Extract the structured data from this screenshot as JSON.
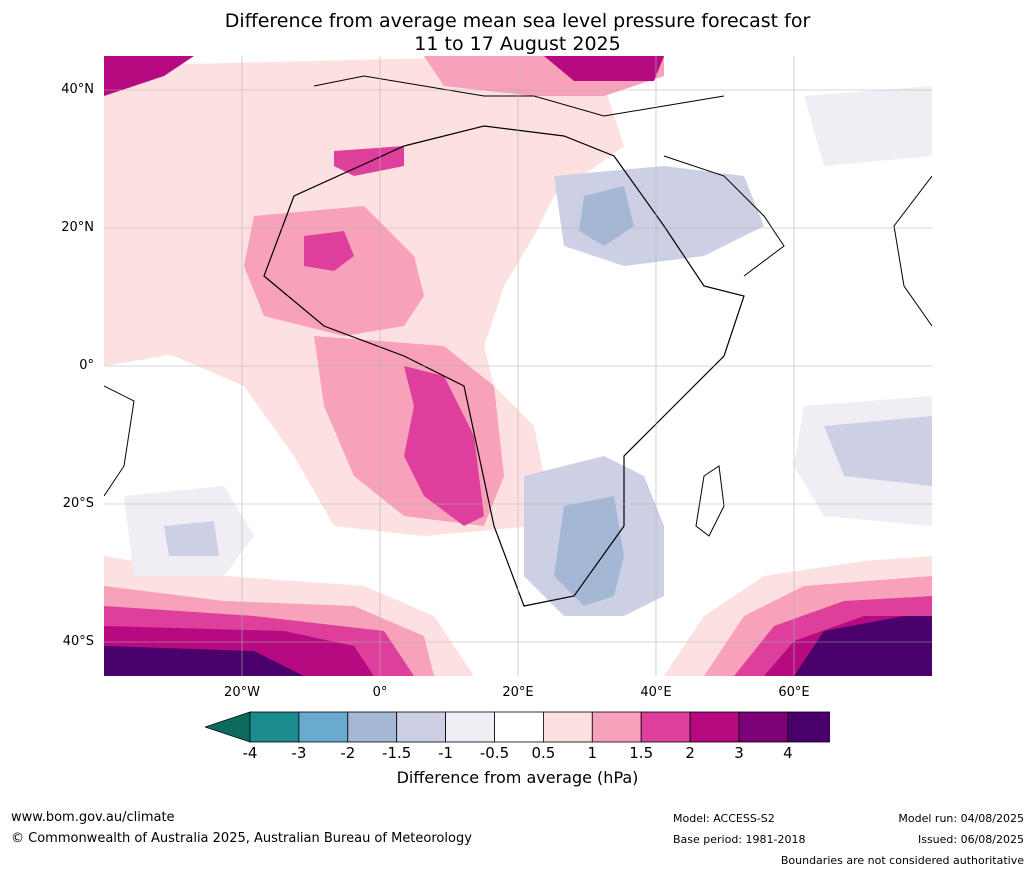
{
  "title": {
    "line1": "Difference from average mean sea level pressure forecast for",
    "line2": "11 to 17 August 2025"
  },
  "map": {
    "lat_labels": [
      "40°N",
      "20°N",
      "0°",
      "20°S",
      "40°S"
    ],
    "lon_labels": [
      "20°W",
      "0°",
      "20°E",
      "40°E",
      "60°E"
    ]
  },
  "colorbar": {
    "ticks": [
      "-4",
      "-3",
      "-2",
      "-1.5",
      "-1",
      "-0.5",
      "0.5",
      "1",
      "1.5",
      "2",
      "3",
      "4"
    ],
    "colors": [
      "#1a8c8e",
      "#6aaad0",
      "#a4b8d6",
      "#cdd0e5",
      "#f1edf4",
      "#ffffff",
      "#fde0e0",
      "#f8a1ba",
      "#df3f9c",
      "#b70a81",
      "#7a0177",
      "#49006a"
    ],
    "under_color": "#0d6b5e",
    "over_color": "#49006a",
    "label": "Difference from average (hPa)"
  },
  "footer": {
    "site": "www.bom.gov.au/climate",
    "copyright": "© Commonwealth of Australia 2025, Australian Bureau of Meteorology",
    "model": "Model: ACCESS-S2",
    "base_period": "Base period: 1981-2018",
    "model_run": "Model run: 04/08/2025",
    "issued": "Issued: 06/08/2025",
    "disclaimer": "Boundaries are not considered authoritative"
  }
}
